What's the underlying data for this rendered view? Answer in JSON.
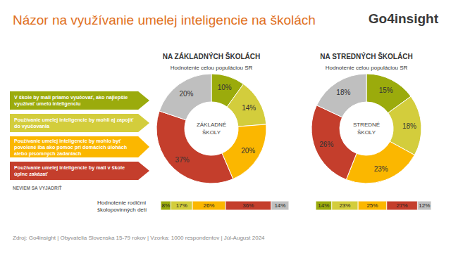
{
  "title": "Názor na využívanie umelej inteligencie na školách",
  "logo": "Go4insight",
  "rows_label": "Hodnotenie rodičmi školopovinných detí",
  "source": "Zdroj:  Go4insight | Obyvatelia Slovenska 15-79 rokov | Vzorka: 1000 respondentov | Júl-August 2024",
  "chart_data": [
    {
      "type": "pie",
      "title": "NA ZÁKLADNÝCH ŠKOLÁCH",
      "subtitle": "Hodnotenie celou populáciou SR",
      "annotation": "ZÁKLADNÉ\nŠKOLY",
      "legend": "left",
      "data_labels": true,
      "categories": [
        "V škole by mali priamo vyučovať, ako najlepšie využívať umelú inteligenciu",
        "Používanie umelej inteligencie by mohli aj zapojiť do vyučovania",
        "Používanie umelej inteligencie by mohlo byť povolené iba ako pomoc pri domácich úlohách alebo písomných zadaniach",
        "Používanie umelej inteligencie by mali v škole úplne zakázať",
        "NEVIEM SA VYJADRIŤ"
      ],
      "values": [
        10,
        14,
        20,
        37,
        20
      ],
      "value_labels": [
        "10%",
        "14%",
        "20%",
        "37%",
        "20%"
      ],
      "colors": [
        "#9bab0c",
        "#d3cd3c",
        "#fbb700",
        "#c43e2c",
        "#bfbfbf"
      ]
    },
    {
      "type": "pie",
      "title": "NA STREDNÝCH ŠKOLÁCH",
      "subtitle": "Hodnotenie celou populáciou SR",
      "annotation": "STREDNÉ\nŠKOLY",
      "data_labels": true,
      "categories": [
        "V škole by mali priamo vyučovať, ako najlepšie využívať umelú inteligenciu",
        "Používanie umelej inteligencie by mohli aj zapojiť do vyučovania",
        "Používanie umelej inteligencie by mohlo byť povolené iba ako pomoc pri domácich úlohách alebo písomných zadaniach",
        "Používanie umelej inteligencie by mali v škole úplne zakázať",
        "NEVIEM SA VYJADRIŤ"
      ],
      "values": [
        15,
        18,
        23,
        26,
        18
      ],
      "value_labels": [
        "15%",
        "18%",
        "23%",
        "26%",
        "18%"
      ],
      "colors": [
        "#9bab0c",
        "#d3cd3c",
        "#fbb700",
        "#c43e2c",
        "#bfbfbf"
      ]
    },
    {
      "type": "bar",
      "orientation": "horizontal",
      "stacked": true,
      "data_labels": true,
      "tick_labels": false,
      "categories": [
        null
      ],
      "xlim": [
        0,
        101
      ],
      "series": [
        {
          "name": "V škole by mali priamo vyučovať, ako najlepšie využívať umelú inteligenciu",
          "color": "#9bab0c",
          "values": [
            8
          ],
          "value_labels": [
            "8%"
          ]
        },
        {
          "name": "Používanie umelej inteligencie by mohli aj zapojiť do vyučovania",
          "color": "#d3cd3c",
          "values": [
            17
          ],
          "value_labels": [
            "17%"
          ]
        },
        {
          "name": "Používanie umelej inteligencie by mohlo byť povolené iba ako pomoc pri domácich úlohách alebo písomných zadaniach",
          "color": "#fbb700",
          "values": [
            26
          ],
          "value_labels": [
            "26%"
          ]
        },
        {
          "name": "Používanie umelej inteligencie by mali v škole úplne zakázať",
          "color": "#c43e2c",
          "values": [
            36
          ],
          "value_labels": [
            "36%"
          ]
        },
        {
          "name": "NEVIEM SA VYJADRIŤ",
          "color": "#bfbfbf",
          "values": [
            14
          ],
          "value_labels": [
            "14%"
          ]
        }
      ]
    },
    {
      "type": "bar",
      "orientation": "horizontal",
      "stacked": true,
      "data_labels": true,
      "tick_labels": false,
      "categories": [
        null
      ],
      "xlim": [
        0,
        101
      ],
      "series": [
        {
          "name": "V škole by mali priamo vyučovať, ako najlepšie využívať umelú inteligenciu",
          "color": "#9bab0c",
          "values": [
            14
          ],
          "value_labels": [
            "14%"
          ]
        },
        {
          "name": "Používanie umelej inteligencie by mohli aj zapojiť do vyučovania",
          "color": "#d3cd3c",
          "values": [
            23
          ],
          "value_labels": [
            "23%"
          ]
        },
        {
          "name": "Používanie umelej inteligencie by mohlo byť povolené iba ako pomoc pri domácich úlohách alebo písomných zadaniach",
          "color": "#fbb700",
          "values": [
            25
          ],
          "value_labels": [
            "25%"
          ]
        },
        {
          "name": "Používanie umelej inteligencie by mali v škole úplne zakázať",
          "color": "#c43e2c",
          "values": [
            27
          ],
          "value_labels": [
            "27%"
          ]
        },
        {
          "name": "NEVIEM SA VYJADRIŤ",
          "color": "#bfbfbf",
          "values": [
            12
          ],
          "value_labels": [
            "12%"
          ]
        }
      ]
    }
  ]
}
